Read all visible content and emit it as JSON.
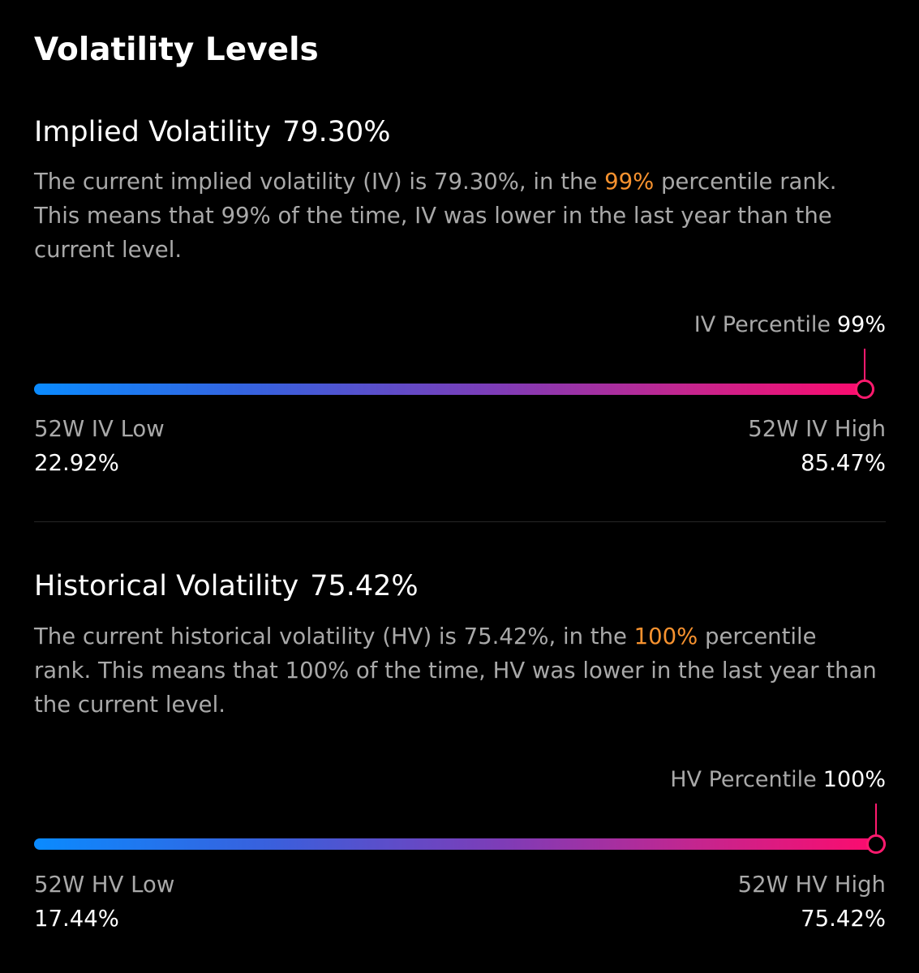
{
  "page": {
    "title": "Volatility Levels"
  },
  "implied": {
    "title": "Implied Volatility",
    "title_value": "79.30%",
    "desc_before": "The current implied volatility (IV) is 79.30%, in the ",
    "desc_accent": "99%",
    "desc_after": " percentile rank. This means that 99% of the time, IV was lower in the last year than the current level.",
    "percentile_label": "IV Percentile",
    "percentile_value": "99%",
    "percentile": 0.99,
    "low_label": "52W IV Low",
    "low_value": "22.92%",
    "high_label": "52W IV High",
    "high_value": "85.47%"
  },
  "historical": {
    "title": "Historical Volatility",
    "title_value": "75.42%",
    "desc_before": "The current historical volatility (HV) is 75.42%, in the ",
    "desc_accent": "100%",
    "desc_after": " percentile rank. This means that 100% of the time, HV was lower in the last year than the current level.",
    "percentile_label": "HV Percentile",
    "percentile_value": "100%",
    "percentile": 1.0,
    "low_label": "52W HV Low",
    "low_value": "17.44%",
    "high_label": "52W HV High",
    "high_value": "75.42%"
  },
  "colors": {
    "accent": "#f7922f",
    "bar_start": "#0a8bff",
    "bar_end": "#ff0a6c",
    "marker": "#ff1a6e"
  }
}
